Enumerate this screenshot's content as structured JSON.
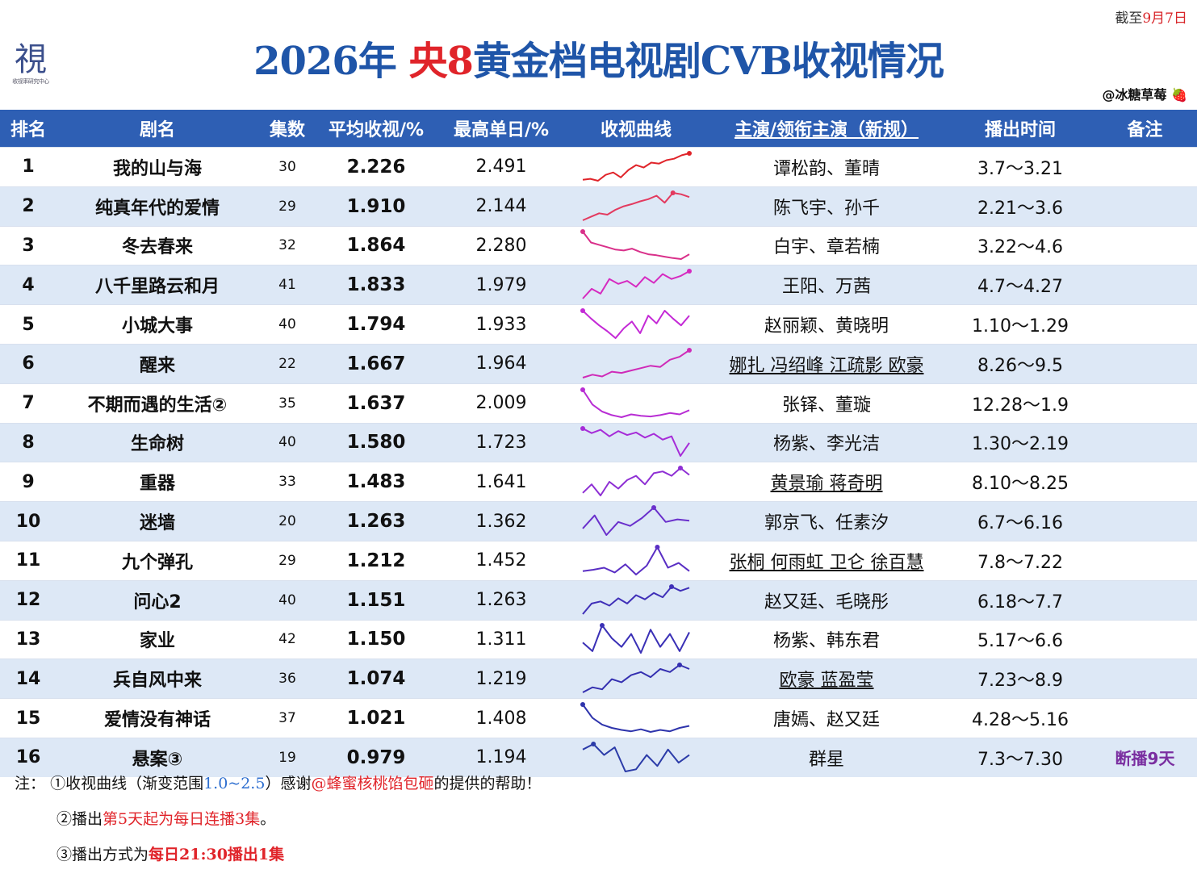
{
  "logo_text": "視",
  "logo_subtext": "收视率研究中心",
  "as_of": {
    "prefix": "截至",
    "date": "9月7日"
  },
  "title": {
    "left": "2026年 ",
    "red": "央8",
    "right": "黄金档电视剧CVB收视情况"
  },
  "author": {
    "handle": "@冰糖草莓",
    "emoji": "🍓"
  },
  "headers": [
    "排名",
    "剧名",
    "集数",
    "平均收视/%",
    "最高单日/%",
    "收视曲线",
    "主演/领衔主演（新规）",
    "播出时间",
    "备注"
  ],
  "rows": [
    {
      "rank": "1",
      "name": "我的山与海",
      "eps": "30",
      "avg": "2.226",
      "peak": "2.491",
      "cast": "谭松韵、董晴",
      "time": "3.7～3.21",
      "note": "",
      "cast_underline": false
    },
    {
      "rank": "2",
      "name": "纯真年代的爱情",
      "eps": "29",
      "avg": "1.910",
      "peak": "2.144",
      "cast": "陈飞宇、孙千",
      "time": "2.21～3.6",
      "note": "",
      "cast_underline": false
    },
    {
      "rank": "3",
      "name": "冬去春来",
      "eps": "32",
      "avg": "1.864",
      "peak": "2.280",
      "cast": "白宇、章若楠",
      "time": "3.22～4.6",
      "note": "",
      "cast_underline": false
    },
    {
      "rank": "4",
      "name": "八千里路云和月",
      "eps": "41",
      "avg": "1.833",
      "peak": "1.979",
      "cast": "王阳、万茜",
      "time": "4.7～4.27",
      "note": "",
      "cast_underline": false
    },
    {
      "rank": "5",
      "name": "小城大事",
      "eps": "40",
      "avg": "1.794",
      "peak": "1.933",
      "cast": "赵丽颖、黄晓明",
      "time": "1.10～1.29",
      "note": "",
      "cast_underline": false
    },
    {
      "rank": "6",
      "name": "醒来",
      "eps": "22",
      "avg": "1.667",
      "peak": "1.964",
      "cast": "娜扎 冯绍峰 江疏影 欧豪",
      "time": "8.26～9.5",
      "note": "",
      "cast_underline": true
    },
    {
      "rank": "7",
      "name": "不期而遇的生活②",
      "eps": "35",
      "avg": "1.637",
      "peak": "2.009",
      "cast": "张铎、董璇",
      "time": "12.28～1.9",
      "note": "",
      "cast_underline": false
    },
    {
      "rank": "8",
      "name": "生命树",
      "eps": "40",
      "avg": "1.580",
      "peak": "1.723",
      "cast": "杨紫、李光洁",
      "time": "1.30～2.19",
      "note": "",
      "cast_underline": false
    },
    {
      "rank": "9",
      "name": "重器",
      "eps": "33",
      "avg": "1.483",
      "peak": "1.641",
      "cast": "黄景瑜 蒋奇明",
      "time": "8.10～8.25",
      "note": "",
      "cast_underline": true
    },
    {
      "rank": "10",
      "name": "迷墙",
      "eps": "20",
      "avg": "1.263",
      "peak": "1.362",
      "cast": "郭京飞、任素汐",
      "time": "6.7～6.16",
      "note": "",
      "cast_underline": false
    },
    {
      "rank": "11",
      "name": "九个弹孔",
      "eps": "29",
      "avg": "1.212",
      "peak": "1.452",
      "cast": "张桐 何雨虹 卫仑 徐百慧",
      "time": "7.8～7.22",
      "note": "",
      "cast_underline": true
    },
    {
      "rank": "12",
      "name": "问心2",
      "eps": "40",
      "avg": "1.151",
      "peak": "1.263",
      "cast": "赵又廷、毛晓彤",
      "time": "6.18～7.7",
      "note": "",
      "cast_underline": false
    },
    {
      "rank": "13",
      "name": "家业",
      "eps": "42",
      "avg": "1.150",
      "peak": "1.311",
      "cast": "杨紫、韩东君",
      "time": "5.17～6.6",
      "note": "",
      "cast_underline": false
    },
    {
      "rank": "14",
      "name": "兵自风中来",
      "eps": "36",
      "avg": "1.074",
      "peak": "1.219",
      "cast": "欧豪 蓝盈莹",
      "time": "7.23～8.9",
      "note": "",
      "cast_underline": true
    },
    {
      "rank": "15",
      "name": "爱情没有神话",
      "eps": "37",
      "avg": "1.021",
      "peak": "1.408",
      "cast": "唐嫣、赵又廷",
      "time": "4.28～5.16",
      "note": "",
      "cast_underline": false
    },
    {
      "rank": "16",
      "name": "悬案③",
      "eps": "19",
      "avg": "0.979",
      "peak": "1.194",
      "cast": "群星",
      "time": "7.3～7.30",
      "note": "断播9天",
      "cast_underline": false
    }
  ],
  "sparkline_colors": [
    "#e0242a",
    "#e33a5f",
    "#d9308a",
    "#d62ac0",
    "#c42ad6",
    "#cf2bb8",
    "#b82dd4",
    "#a62cd8",
    "#8e2fd4",
    "#6a30cc",
    "#5a2fc4",
    "#3f2fb8",
    "#3a30b6",
    "#342fb0",
    "#2e34ac",
    "#2b3ba8"
  ],
  "sparklines": [
    [
      1.95,
      1.97,
      1.93,
      2.05,
      2.1,
      2.0,
      2.15,
      2.25,
      2.2,
      2.3,
      2.28,
      2.35,
      2.38,
      2.45,
      2.49
    ],
    [
      1.75,
      1.8,
      1.85,
      1.83,
      1.9,
      1.95,
      1.98,
      2.02,
      2.05,
      2.1,
      2.0,
      2.14,
      2.12,
      2.08
    ],
    [
      2.28,
      2.05,
      2.0,
      1.95,
      1.9,
      1.88,
      1.92,
      1.85,
      1.8,
      1.78,
      1.75,
      1.72,
      1.7,
      1.8
    ],
    [
      1.7,
      1.8,
      1.75,
      1.9,
      1.85,
      1.88,
      1.82,
      1.92,
      1.86,
      1.95,
      1.9,
      1.93,
      1.98
    ],
    [
      1.93,
      1.85,
      1.78,
      1.72,
      1.65,
      1.75,
      1.82,
      1.7,
      1.88,
      1.8,
      1.93,
      1.85,
      1.78,
      1.88
    ],
    [
      1.5,
      1.55,
      1.52,
      1.6,
      1.58,
      1.62,
      1.66,
      1.7,
      1.68,
      1.8,
      1.85,
      1.96
    ],
    [
      2.01,
      1.8,
      1.7,
      1.65,
      1.62,
      1.66,
      1.64,
      1.63,
      1.65,
      1.68,
      1.66,
      1.72
    ],
    [
      1.72,
      1.65,
      1.7,
      1.6,
      1.68,
      1.62,
      1.66,
      1.58,
      1.64,
      1.55,
      1.6,
      1.3,
      1.5
    ],
    [
      1.35,
      1.45,
      1.32,
      1.48,
      1.4,
      1.5,
      1.55,
      1.45,
      1.58,
      1.6,
      1.55,
      1.64,
      1.56
    ],
    [
      1.2,
      1.3,
      1.15,
      1.25,
      1.22,
      1.28,
      1.36,
      1.25,
      1.27,
      1.26
    ],
    [
      1.1,
      1.12,
      1.15,
      1.08,
      1.2,
      1.05,
      1.18,
      1.45,
      1.15,
      1.22,
      1.1
    ],
    [
      1.0,
      1.1,
      1.12,
      1.08,
      1.15,
      1.1,
      1.18,
      1.14,
      1.2,
      1.16,
      1.26,
      1.22,
      1.25
    ],
    [
      1.1,
      1.0,
      1.3,
      1.15,
      1.05,
      1.2,
      0.98,
      1.25,
      1.05,
      1.2,
      1.0,
      1.22
    ],
    [
      0.95,
      1.0,
      0.98,
      1.08,
      1.05,
      1.12,
      1.15,
      1.1,
      1.18,
      1.15,
      1.22,
      1.18
    ],
    [
      1.4,
      1.2,
      1.1,
      1.05,
      1.02,
      1.0,
      1.03,
      0.99,
      1.02,
      1.0,
      1.05,
      1.08
    ],
    [
      1.1,
      1.15,
      1.05,
      1.12,
      0.9,
      0.92,
      1.05,
      0.95,
      1.1,
      0.98,
      1.05
    ]
  ],
  "notes": {
    "label": "注：",
    "note1": {
      "a": "①收视曲线（渐变范围",
      "range": "1.0~2.5",
      "b": "）感谢",
      "thanks": "@蜂蜜核桃馅包砸",
      "c": "的提供的帮助！"
    },
    "note2": {
      "a": "②播出",
      "red": "第5天起为每日连播3集",
      "b": "。"
    },
    "note3": {
      "a": "③播出方式为",
      "red": "每日21:30播出1集"
    }
  }
}
